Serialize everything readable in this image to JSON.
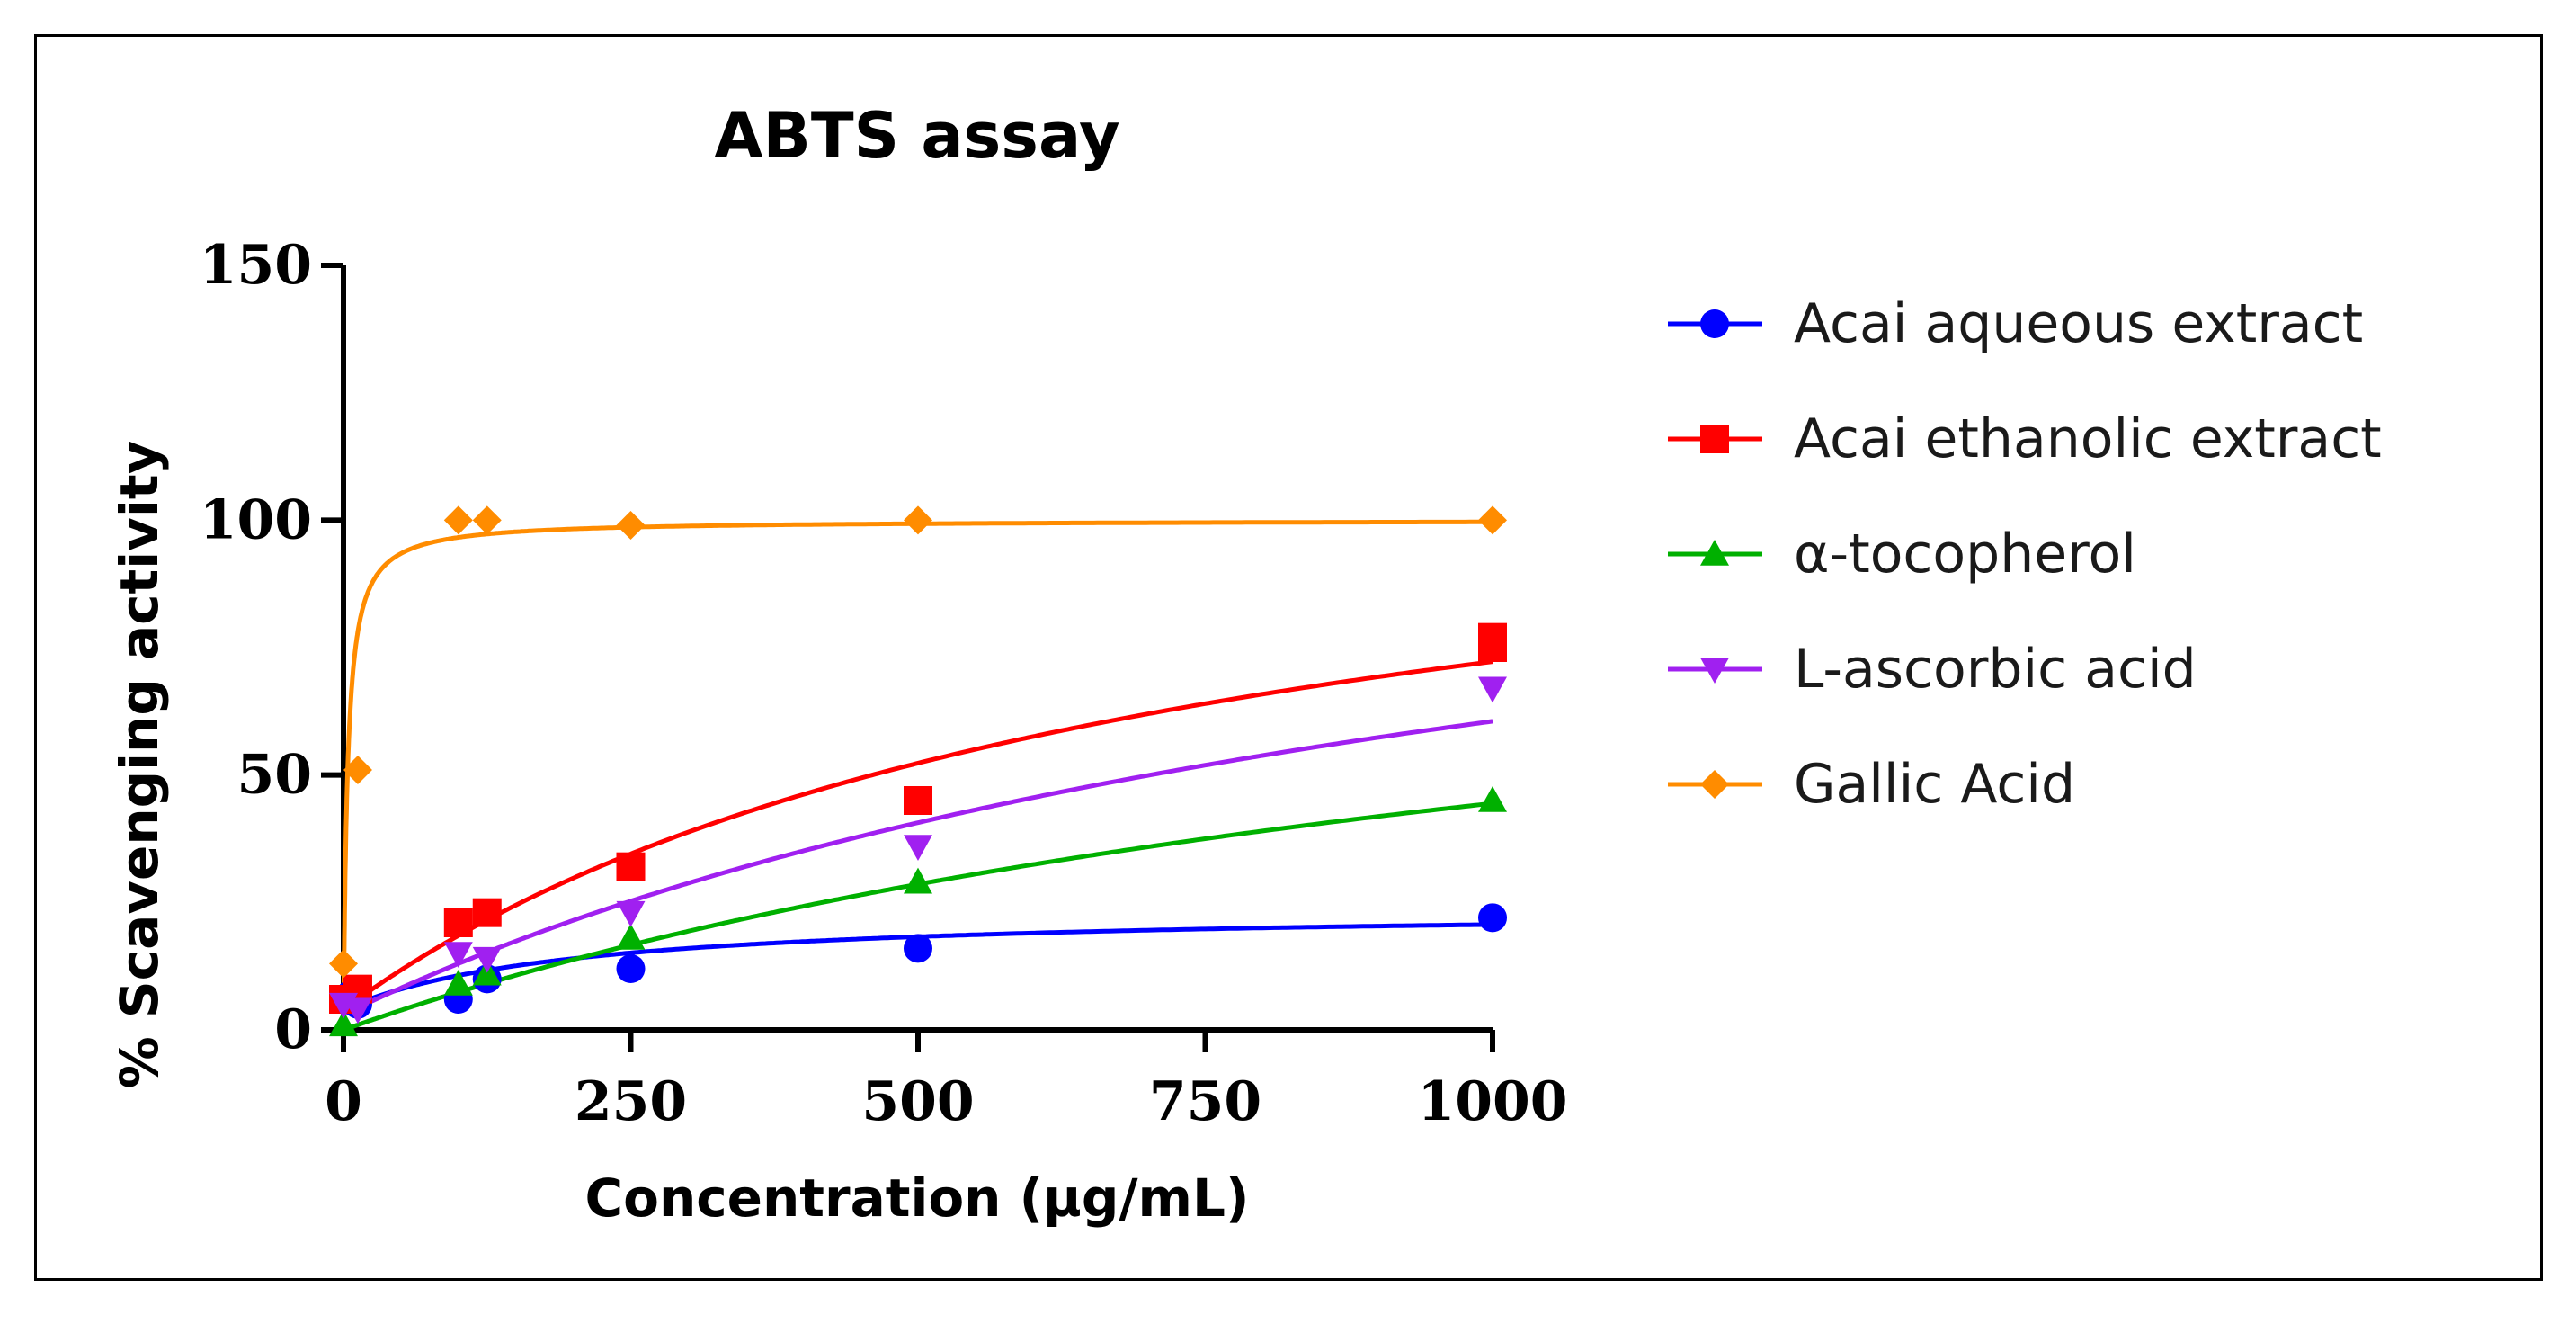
{
  "chart_data": {
    "type": "scatter",
    "title": "ABTS assay",
    "xlabel": "Concentration (µg/mL)",
    "ylabel": "% Scavenging activity",
    "xlim": [
      0,
      1000
    ],
    "ylim": [
      0,
      150
    ],
    "x_ticks": [
      "0",
      "250",
      "500",
      "750",
      "1000"
    ],
    "y_ticks": [
      "0",
      "50",
      "100",
      "150"
    ],
    "grid": false,
    "legend_position": "right",
    "series": [
      {
        "name": "Acai aqueous extract",
        "color": "#0000ff",
        "marker": "circle",
        "x": [
          0,
          6.25,
          12.5,
          100,
          125,
          250,
          500,
          1000
        ],
        "y": [
          6,
          7,
          5,
          6,
          10,
          12,
          16,
          22
        ]
      },
      {
        "name": "Acai ethanolic extract",
        "color": "#ff0000",
        "marker": "square",
        "x": [
          0,
          12.5,
          100,
          125,
          250,
          500,
          1000,
          1000
        ],
        "y": [
          6,
          8,
          21,
          23,
          32,
          45,
          77,
          75
        ]
      },
      {
        "name": "α-tocopherol",
        "color": "#00b000",
        "marker": "triangle-up",
        "x": [
          0,
          100,
          125,
          250,
          500,
          1000
        ],
        "y": [
          1,
          9,
          11,
          18,
          29,
          45
        ]
      },
      {
        "name": "L-ascorbic acid",
        "color": "#a020f0",
        "marker": "triangle-down",
        "x": [
          0,
          12.5,
          100,
          125,
          250,
          500,
          1000
        ],
        "y": [
          5,
          4,
          15,
          14,
          23,
          36,
          67
        ]
      },
      {
        "name": "Gallic Acid",
        "color": "#ff8c00",
        "marker": "diamond",
        "x": [
          0,
          12.5,
          100,
          125,
          250,
          500,
          1000
        ],
        "y": [
          13,
          51,
          100,
          100,
          99,
          100,
          100
        ]
      }
    ]
  }
}
